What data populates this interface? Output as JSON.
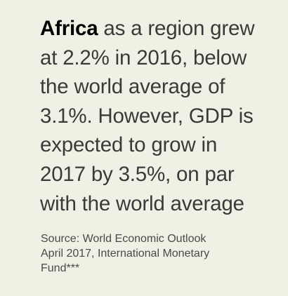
{
  "headline": {
    "highlight": "Africa",
    "line1_rest": " as a region grew",
    "line2": "at 2.2% in 2016, below",
    "line3": "the world average of",
    "line4": "3.1%. However, GDP is",
    "line5": "expected to grow in",
    "line6": "2017 by 3.5%, on par",
    "line7": "with the world average"
  },
  "source": {
    "line1": "Source: World Economic Outlook",
    "line2": "April 2017, International Monetary",
    "line3": "Fund***"
  },
  "colors": {
    "background": "#eef1e4",
    "text": "#3a3a3a",
    "highlight": "#000000",
    "source": "#4a4a4a"
  }
}
